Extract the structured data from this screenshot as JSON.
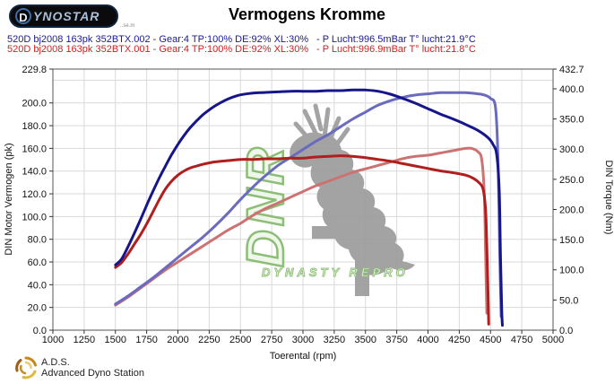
{
  "header": {
    "logo_text_d": "D",
    "logo_text_rest": "YNOSTAR",
    "logo_subtext": "..se.m",
    "title": "Vermogens Kromme"
  },
  "legend": {
    "rows": [
      {
        "spec": "520D bj2008 163pk 352BTX.002 - Gear:4 TP:100% DE:92% XL:30%",
        "ambient": "- P Lucht:996.5mBar T° lucht:21.9°C",
        "color": "#1a1a8c"
      },
      {
        "spec": "520D bj2008 163pk 352BTX.001 - Gear:4 TP:100% DE:92% XL:30%",
        "ambient": "- P Lucht:996.9mBar T° lucht:21.8°C",
        "color": "#cc2222"
      }
    ]
  },
  "watermark": {
    "letters": "DNR",
    "caption": "DYNASTY REPRO"
  },
  "footer": {
    "abbr": "A.D.S.",
    "name": "Advanced Dyno Station"
  },
  "chart_data": {
    "type": "line",
    "title": "Vermogens Kromme",
    "xlabel": "Toerental (rpm)",
    "ylabel_left": "DIN Motor Vermogen (pk)",
    "ylabel_right": "DIN Torque (Nm)",
    "xlim": [
      1000,
      5000
    ],
    "ylim_left": [
      0,
      229.8
    ],
    "ylim_right": [
      0,
      432.7
    ],
    "grid": true,
    "x_ticks": [
      1000,
      1250,
      1500,
      1750,
      2000,
      2250,
      2500,
      2750,
      3000,
      3250,
      3500,
      3750,
      4000,
      4250,
      4500,
      4750,
      5000
    ],
    "left_ticks": [
      "229.8",
      "200.0",
      "180.0",
      "160.0",
      "140.0",
      "120.0",
      "100.0",
      "80.0",
      "60.0",
      "40.0",
      "20.0",
      "0.0"
    ],
    "right_ticks": [
      "432.7",
      "400.0",
      "350.0",
      "300.0",
      "250.0",
      "200.0",
      "150.0",
      "100.0",
      "50.0",
      "0.0"
    ],
    "h_grid_left_values": [
      220,
      200,
      180,
      160,
      140,
      120,
      100,
      80,
      60,
      40,
      20
    ],
    "series": [
      {
        "name": "power_run001",
        "axis": "left",
        "color": "#cc7272",
        "unit": "pk",
        "points": [
          [
            1500,
            22
          ],
          [
            1600,
            29
          ],
          [
            1700,
            37
          ],
          [
            1800,
            45
          ],
          [
            1900,
            53
          ],
          [
            2000,
            60
          ],
          [
            2100,
            67
          ],
          [
            2200,
            74
          ],
          [
            2300,
            81
          ],
          [
            2400,
            88
          ],
          [
            2500,
            94
          ],
          [
            2600,
            101
          ],
          [
            2700,
            107
          ],
          [
            2800,
            112
          ],
          [
            2900,
            117
          ],
          [
            3000,
            122
          ],
          [
            3100,
            127
          ],
          [
            3200,
            131
          ],
          [
            3300,
            135
          ],
          [
            3400,
            139
          ],
          [
            3500,
            142
          ],
          [
            3600,
            145
          ],
          [
            3700,
            148
          ],
          [
            3800,
            151
          ],
          [
            3900,
            153
          ],
          [
            4000,
            154
          ],
          [
            4100,
            156
          ],
          [
            4200,
            158
          ],
          [
            4300,
            160
          ],
          [
            4350,
            160
          ],
          [
            4400,
            157
          ],
          [
            4430,
            150
          ],
          [
            4450,
            120
          ],
          [
            4460,
            70
          ],
          [
            4470,
            15
          ]
        ]
      },
      {
        "name": "power_run002",
        "axis": "left",
        "color": "#6a6abe",
        "unit": "pk",
        "points": [
          [
            1500,
            23
          ],
          [
            1600,
            30
          ],
          [
            1700,
            38
          ],
          [
            1800,
            46
          ],
          [
            1900,
            55
          ],
          [
            2000,
            64
          ],
          [
            2100,
            73
          ],
          [
            2200,
            82
          ],
          [
            2300,
            92
          ],
          [
            2400,
            103
          ],
          [
            2500,
            115
          ],
          [
            2600,
            126
          ],
          [
            2700,
            136
          ],
          [
            2800,
            145
          ],
          [
            2900,
            152
          ],
          [
            3000,
            159
          ],
          [
            3100,
            166
          ],
          [
            3200,
            172
          ],
          [
            3300,
            179
          ],
          [
            3400,
            186
          ],
          [
            3500,
            192
          ],
          [
            3600,
            198
          ],
          [
            3700,
            202
          ],
          [
            3800,
            205
          ],
          [
            3900,
            207
          ],
          [
            4000,
            208
          ],
          [
            4100,
            209
          ],
          [
            4200,
            209
          ],
          [
            4300,
            209
          ],
          [
            4400,
            208
          ],
          [
            4450,
            207
          ],
          [
            4500,
            204
          ],
          [
            4540,
            196
          ],
          [
            4560,
            150
          ],
          [
            4575,
            60
          ],
          [
            4585,
            12
          ]
        ]
      },
      {
        "name": "torque_run001",
        "axis": "right",
        "color": "#b01e1e",
        "unit": "Nm",
        "points": [
          [
            1500,
            104
          ],
          [
            1550,
            112
          ],
          [
            1600,
            126
          ],
          [
            1650,
            142
          ],
          [
            1700,
            158
          ],
          [
            1750,
            176
          ],
          [
            1800,
            196
          ],
          [
            1850,
            216
          ],
          [
            1900,
            234
          ],
          [
            1950,
            247
          ],
          [
            2000,
            257
          ],
          [
            2050,
            264
          ],
          [
            2100,
            269
          ],
          [
            2150,
            272
          ],
          [
            2200,
            275
          ],
          [
            2300,
            279
          ],
          [
            2400,
            281
          ],
          [
            2500,
            283
          ],
          [
            2600,
            283
          ],
          [
            2700,
            284
          ],
          [
            2800,
            284
          ],
          [
            2900,
            285
          ],
          [
            3000,
            285
          ],
          [
            3100,
            287
          ],
          [
            3200,
            288
          ],
          [
            3300,
            289
          ],
          [
            3400,
            288
          ],
          [
            3500,
            286
          ],
          [
            3600,
            283
          ],
          [
            3700,
            280
          ],
          [
            3800,
            276
          ],
          [
            3900,
            272
          ],
          [
            4000,
            268
          ],
          [
            4100,
            264
          ],
          [
            4200,
            261
          ],
          [
            4300,
            257
          ],
          [
            4350,
            253
          ],
          [
            4400,
            246
          ],
          [
            4440,
            234
          ],
          [
            4460,
            200
          ],
          [
            4470,
            140
          ],
          [
            4480,
            60
          ],
          [
            4485,
            10
          ]
        ]
      },
      {
        "name": "torque_run002",
        "axis": "right",
        "color": "#16168a",
        "unit": "Nm",
        "points": [
          [
            1500,
            108
          ],
          [
            1550,
            118
          ],
          [
            1600,
            138
          ],
          [
            1650,
            160
          ],
          [
            1700,
            183
          ],
          [
            1750,
            207
          ],
          [
            1800,
            230
          ],
          [
            1850,
            252
          ],
          [
            1900,
            272
          ],
          [
            1950,
            291
          ],
          [
            2000,
            308
          ],
          [
            2050,
            323
          ],
          [
            2100,
            336
          ],
          [
            2150,
            347
          ],
          [
            2200,
            357
          ],
          [
            2250,
            365
          ],
          [
            2300,
            372
          ],
          [
            2350,
            378
          ],
          [
            2400,
            383
          ],
          [
            2450,
            387
          ],
          [
            2500,
            390
          ],
          [
            2600,
            393
          ],
          [
            2700,
            394
          ],
          [
            2800,
            395
          ],
          [
            2900,
            396
          ],
          [
            3000,
            396
          ],
          [
            3100,
            396
          ],
          [
            3200,
            397
          ],
          [
            3300,
            397
          ],
          [
            3400,
            398
          ],
          [
            3500,
            398
          ],
          [
            3600,
            396
          ],
          [
            3700,
            391
          ],
          [
            3800,
            384
          ],
          [
            3900,
            376
          ],
          [
            4000,
            367
          ],
          [
            4100,
            358
          ],
          [
            4200,
            350
          ],
          [
            4300,
            341
          ],
          [
            4400,
            331
          ],
          [
            4480,
            319
          ],
          [
            4520,
            308
          ],
          [
            4550,
            290
          ],
          [
            4570,
            230
          ],
          [
            4580,
            120
          ],
          [
            4590,
            30
          ],
          [
            4595,
            8
          ]
        ]
      }
    ]
  }
}
